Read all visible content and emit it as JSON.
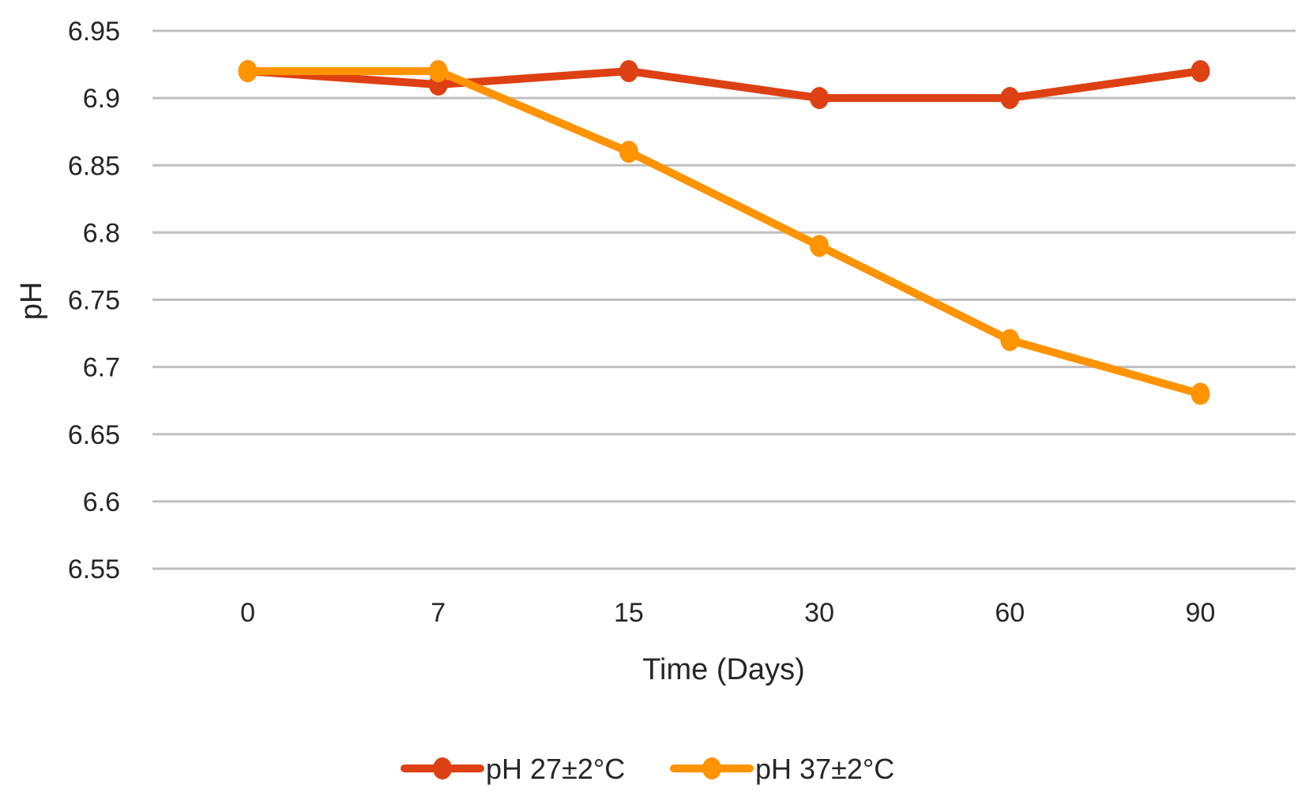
{
  "chart_data": {
    "type": "line",
    "title": "",
    "xlabel": "Time (Days)",
    "ylabel": "pH",
    "categories": [
      "0",
      "7",
      "15",
      "30",
      "60",
      "90"
    ],
    "ylim": [
      6.55,
      6.95
    ],
    "yticks": [
      "6.55",
      "6.6",
      "6.65",
      "6.7",
      "6.75",
      "6.8",
      "6.85",
      "6.9",
      "6.95"
    ],
    "grid": true,
    "legend_position": "bottom",
    "series": [
      {
        "name": "pH 27±2°C",
        "color": "#dd4013",
        "values": [
          6.92,
          6.91,
          6.92,
          6.9,
          6.9,
          6.92
        ]
      },
      {
        "name": "pH 37±2°C",
        "color": "#ff9300",
        "values": [
          6.92,
          6.92,
          6.86,
          6.79,
          6.72,
          6.68
        ]
      }
    ]
  }
}
